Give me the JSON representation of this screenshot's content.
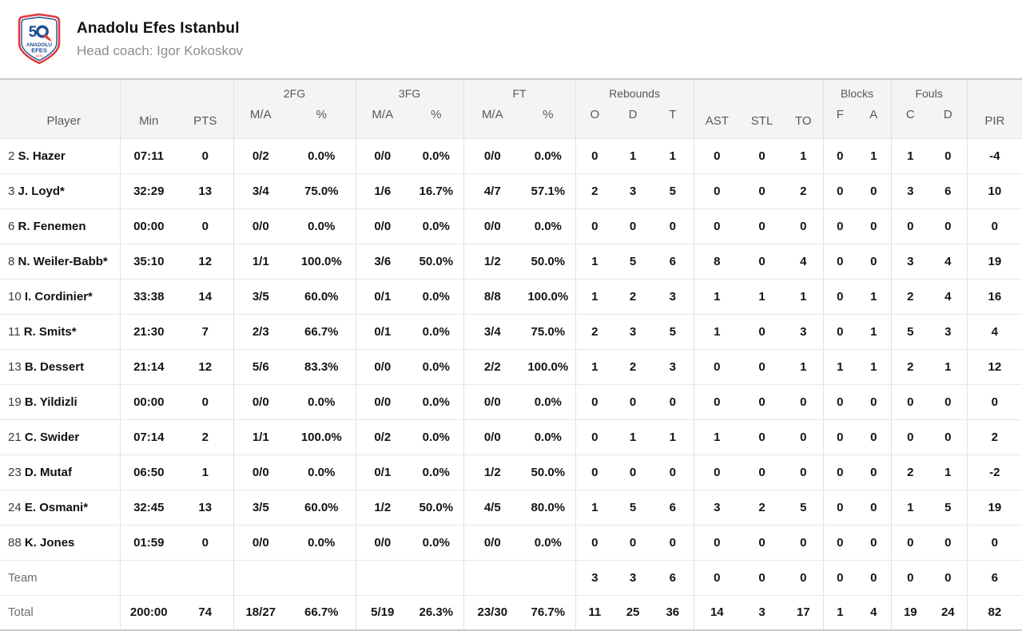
{
  "team": {
    "name": "Anadolu Efes Istanbul",
    "head_coach": "Head coach: Igor Kokoskov",
    "logo": {
      "big": "50",
      "line1": "ANADOLU",
      "line2": "EFES",
      "year": "1976",
      "red": "#e23b3f",
      "navy": "#1d4f91"
    }
  },
  "table": {
    "groups": {
      "fg2": "2FG",
      "fg3": "3FG",
      "ft": "FT",
      "rebounds": "Rebounds",
      "blocks": "Blocks",
      "fouls": "Fouls"
    },
    "headers": {
      "player": "Player",
      "min": "Min",
      "pts": "PTS",
      "ma": "M/A",
      "pct": "%",
      "o": "O",
      "d": "D",
      "t": "T",
      "ast": "AST",
      "stl": "STL",
      "to": "TO",
      "f": "F",
      "a": "A",
      "c": "C",
      "d2": "D",
      "pir": "PIR"
    },
    "rows": [
      {
        "num": "2",
        "name": "S. Hazer",
        "min": "07:11",
        "pts": "0",
        "fg2": "0/2",
        "fg2p": "0.0%",
        "fg3": "0/0",
        "fg3p": "0.0%",
        "ft": "0/0",
        "ftp": "0.0%",
        "ro": "0",
        "rd": "1",
        "rt": "1",
        "ast": "0",
        "stl": "0",
        "to": "1",
        "bf": "0",
        "ba": "1",
        "fc": "1",
        "fd": "0",
        "pir": "-4"
      },
      {
        "num": "3",
        "name": "J. Loyd*",
        "min": "32:29",
        "pts": "13",
        "fg2": "3/4",
        "fg2p": "75.0%",
        "fg3": "1/6",
        "fg3p": "16.7%",
        "ft": "4/7",
        "ftp": "57.1%",
        "ro": "2",
        "rd": "3",
        "rt": "5",
        "ast": "0",
        "stl": "0",
        "to": "2",
        "bf": "0",
        "ba": "0",
        "fc": "3",
        "fd": "6",
        "pir": "10"
      },
      {
        "num": "6",
        "name": "R. Fenemen",
        "min": "00:00",
        "pts": "0",
        "fg2": "0/0",
        "fg2p": "0.0%",
        "fg3": "0/0",
        "fg3p": "0.0%",
        "ft": "0/0",
        "ftp": "0.0%",
        "ro": "0",
        "rd": "0",
        "rt": "0",
        "ast": "0",
        "stl": "0",
        "to": "0",
        "bf": "0",
        "ba": "0",
        "fc": "0",
        "fd": "0",
        "pir": "0"
      },
      {
        "num": "8",
        "name": "N. Weiler-Babb*",
        "min": "35:10",
        "pts": "12",
        "fg2": "1/1",
        "fg2p": "100.0%",
        "fg3": "3/6",
        "fg3p": "50.0%",
        "ft": "1/2",
        "ftp": "50.0%",
        "ro": "1",
        "rd": "5",
        "rt": "6",
        "ast": "8",
        "stl": "0",
        "to": "4",
        "bf": "0",
        "ba": "0",
        "fc": "3",
        "fd": "4",
        "pir": "19"
      },
      {
        "num": "10",
        "name": "I. Cordinier*",
        "min": "33:38",
        "pts": "14",
        "fg2": "3/5",
        "fg2p": "60.0%",
        "fg3": "0/1",
        "fg3p": "0.0%",
        "ft": "8/8",
        "ftp": "100.0%",
        "ro": "1",
        "rd": "2",
        "rt": "3",
        "ast": "1",
        "stl": "1",
        "to": "1",
        "bf": "0",
        "ba": "1",
        "fc": "2",
        "fd": "4",
        "pir": "16"
      },
      {
        "num": "11",
        "name": "R. Smits*",
        "min": "21:30",
        "pts": "7",
        "fg2": "2/3",
        "fg2p": "66.7%",
        "fg3": "0/1",
        "fg3p": "0.0%",
        "ft": "3/4",
        "ftp": "75.0%",
        "ro": "2",
        "rd": "3",
        "rt": "5",
        "ast": "1",
        "stl": "0",
        "to": "3",
        "bf": "0",
        "ba": "1",
        "fc": "5",
        "fd": "3",
        "pir": "4"
      },
      {
        "num": "13",
        "name": "B. Dessert",
        "min": "21:14",
        "pts": "12",
        "fg2": "5/6",
        "fg2p": "83.3%",
        "fg3": "0/0",
        "fg3p": "0.0%",
        "ft": "2/2",
        "ftp": "100.0%",
        "ro": "1",
        "rd": "2",
        "rt": "3",
        "ast": "0",
        "stl": "0",
        "to": "1",
        "bf": "1",
        "ba": "1",
        "fc": "2",
        "fd": "1",
        "pir": "12"
      },
      {
        "num": "19",
        "name": "B. Yildizli",
        "min": "00:00",
        "pts": "0",
        "fg2": "0/0",
        "fg2p": "0.0%",
        "fg3": "0/0",
        "fg3p": "0.0%",
        "ft": "0/0",
        "ftp": "0.0%",
        "ro": "0",
        "rd": "0",
        "rt": "0",
        "ast": "0",
        "stl": "0",
        "to": "0",
        "bf": "0",
        "ba": "0",
        "fc": "0",
        "fd": "0",
        "pir": "0"
      },
      {
        "num": "21",
        "name": "C. Swider",
        "min": "07:14",
        "pts": "2",
        "fg2": "1/1",
        "fg2p": "100.0%",
        "fg3": "0/2",
        "fg3p": "0.0%",
        "ft": "0/0",
        "ftp": "0.0%",
        "ro": "0",
        "rd": "1",
        "rt": "1",
        "ast": "1",
        "stl": "0",
        "to": "0",
        "bf": "0",
        "ba": "0",
        "fc": "0",
        "fd": "0",
        "pir": "2"
      },
      {
        "num": "23",
        "name": "D. Mutaf",
        "min": "06:50",
        "pts": "1",
        "fg2": "0/0",
        "fg2p": "0.0%",
        "fg3": "0/1",
        "fg3p": "0.0%",
        "ft": "1/2",
        "ftp": "50.0%",
        "ro": "0",
        "rd": "0",
        "rt": "0",
        "ast": "0",
        "stl": "0",
        "to": "0",
        "bf": "0",
        "ba": "0",
        "fc": "2",
        "fd": "1",
        "pir": "-2"
      },
      {
        "num": "24",
        "name": "E. Osmani*",
        "min": "32:45",
        "pts": "13",
        "fg2": "3/5",
        "fg2p": "60.0%",
        "fg3": "1/2",
        "fg3p": "50.0%",
        "ft": "4/5",
        "ftp": "80.0%",
        "ro": "1",
        "rd": "5",
        "rt": "6",
        "ast": "3",
        "stl": "2",
        "to": "5",
        "bf": "0",
        "ba": "0",
        "fc": "1",
        "fd": "5",
        "pir": "19"
      },
      {
        "num": "88",
        "name": "K. Jones",
        "min": "01:59",
        "pts": "0",
        "fg2": "0/0",
        "fg2p": "0.0%",
        "fg3": "0/0",
        "fg3p": "0.0%",
        "ft": "0/0",
        "ftp": "0.0%",
        "ro": "0",
        "rd": "0",
        "rt": "0",
        "ast": "0",
        "stl": "0",
        "to": "0",
        "bf": "0",
        "ba": "0",
        "fc": "0",
        "fd": "0",
        "pir": "0"
      }
    ],
    "team_row": {
      "label": "Team",
      "min": "",
      "pts": "",
      "fg2": "",
      "fg2p": "",
      "fg3": "",
      "fg3p": "",
      "ft": "",
      "ftp": "",
      "ro": "3",
      "rd": "3",
      "rt": "6",
      "ast": "0",
      "stl": "0",
      "to": "0",
      "bf": "0",
      "ba": "0",
      "fc": "0",
      "fd": "0",
      "pir": "6"
    },
    "total_row": {
      "label": "Total",
      "min": "200:00",
      "pts": "74",
      "fg2": "18/27",
      "fg2p": "66.7%",
      "fg3": "5/19",
      "fg3p": "26.3%",
      "ft": "23/30",
      "ftp": "76.7%",
      "ro": "11",
      "rd": "25",
      "rt": "36",
      "ast": "14",
      "stl": "3",
      "to": "17",
      "bf": "1",
      "ba": "4",
      "fc": "19",
      "fd": "24",
      "pir": "82"
    }
  }
}
